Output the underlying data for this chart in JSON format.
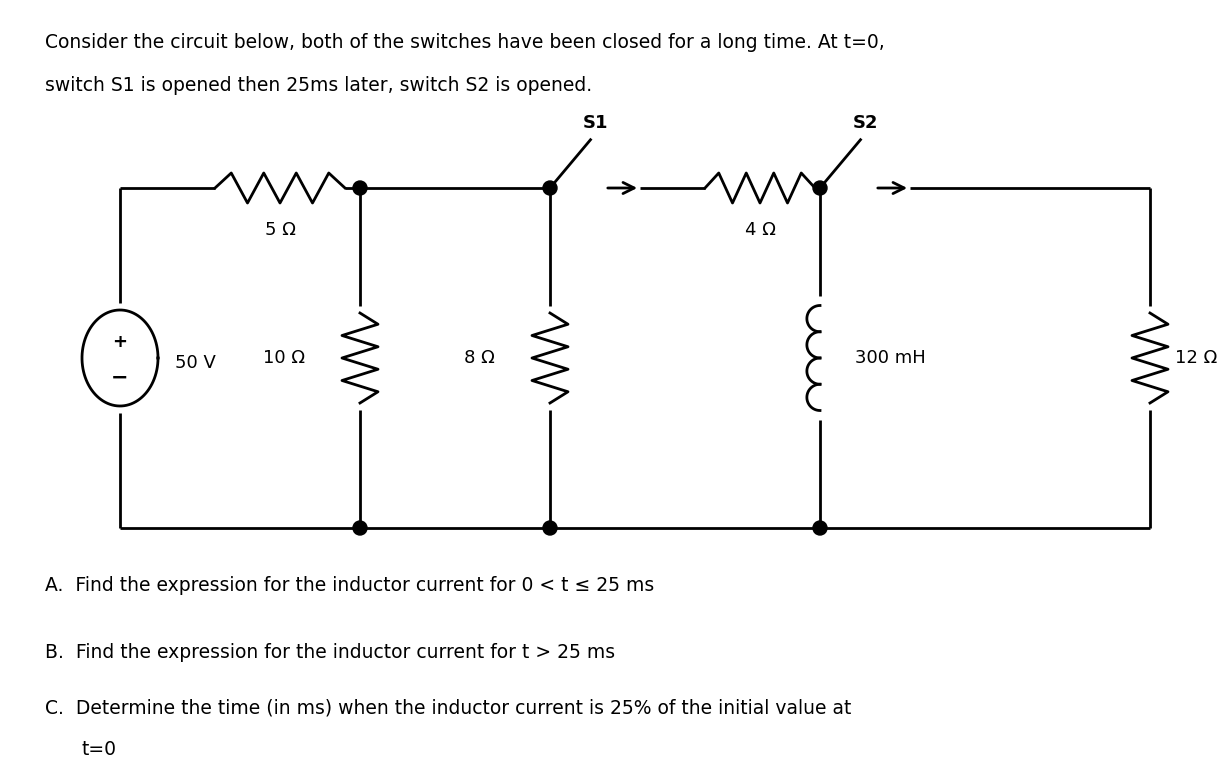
{
  "bg_color": "#ffffff",
  "line_color": "#000000",
  "title_text": "Consider the circuit below, both of the switches have been closed for a long time. At t=0,\nswitch S1 is opened then 25ms later, switch S2 is opened.",
  "title_fontsize": 13.5,
  "question_A": "A.  Find the expression for the inductor current for 0 < t ≤ 25 ms",
  "question_B": "B.  Find the expression for the inductor current for t > 25 ms",
  "question_C1": "C.  Determine the time (in ms) when the inductor current is 25% of the initial value at",
  "question_C2": "     t=0",
  "question_fontsize": 13.5,
  "lw": 2.0,
  "r1_val": "5 Ω",
  "r2_val": "10 Ω",
  "r3_val": "8 Ω",
  "r4_val": "4 Ω",
  "ind_val": "300 mH",
  "r5_val": "12 Ω",
  "vs_val": "50 V",
  "s1_lbl": "S1",
  "s2_lbl": "S2"
}
